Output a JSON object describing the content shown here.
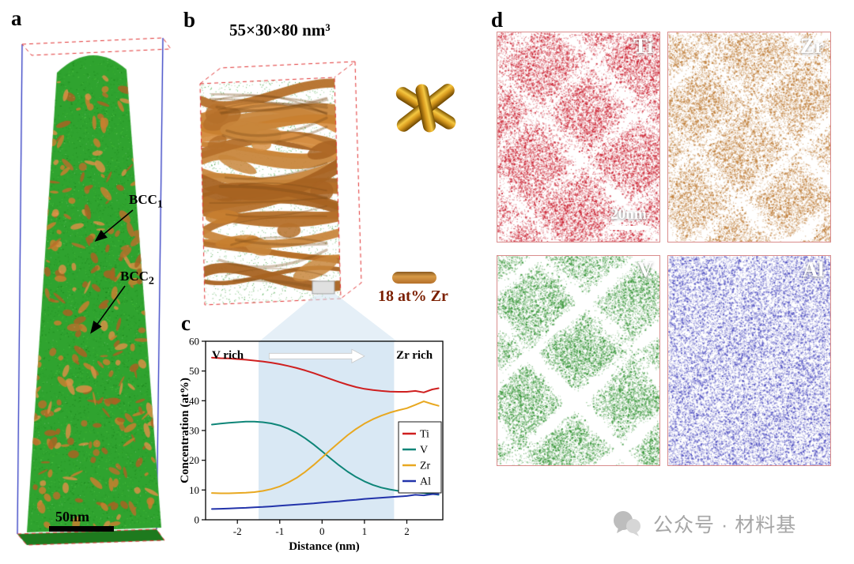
{
  "page": {
    "background": "#ffffff"
  },
  "panel_a": {
    "label": "a",
    "annotations": [
      {
        "text": "BCC",
        "sub": "1"
      },
      {
        "text": "BCC",
        "sub": "2"
      }
    ],
    "scale_bar_label": "50nm",
    "colors": {
      "matrix_green": "#2fa32f",
      "precipitate_orange": "#c07830",
      "wireframe_blue": "#2a35c0",
      "wireframe_red": "#e03030"
    }
  },
  "panel_b": {
    "label": "b",
    "volume_label": "55×30×80 nm³",
    "isosurface_caption": "18 at% Zr",
    "colors": {
      "matrix_green": "#2f9e2f",
      "isosurface_orange": "#c07830",
      "cylinder_gold": "#d89a1e"
    }
  },
  "panel_c": {
    "label": "c"
  },
  "chart_data": {
    "type": "line",
    "title": "",
    "xlabel": "Distance (nm)",
    "ylabel": "Concentration (at%)",
    "xlim": [
      -2.75,
      2.85
    ],
    "ylim": [
      0,
      60
    ],
    "xticks": [
      -2,
      -1,
      0,
      1,
      2
    ],
    "yticks": [
      0,
      10,
      20,
      30,
      40,
      50,
      60
    ],
    "shaded_region": {
      "x0": -1.5,
      "x1": 1.7,
      "color": "#d9e8f4"
    },
    "arrow": {
      "x0": -1.25,
      "x1": 1.0,
      "y": 55.0
    },
    "annotations": [
      {
        "text": "V rich",
        "x": -2.6,
        "y": 55.5
      },
      {
        "text": "Zr rich",
        "x": 1.75,
        "y": 55.5
      }
    ],
    "legend": {
      "position": "middle-right",
      "entries": [
        "Ti",
        "V",
        "Zr",
        "Al"
      ]
    },
    "x": [
      -2.6,
      -2.4,
      -2.2,
      -2.0,
      -1.8,
      -1.6,
      -1.4,
      -1.2,
      -1.0,
      -0.8,
      -0.6,
      -0.4,
      -0.2,
      0.0,
      0.2,
      0.4,
      0.6,
      0.8,
      1.0,
      1.2,
      1.4,
      1.6,
      1.8,
      2.0,
      2.2,
      2.4,
      2.6,
      2.75
    ],
    "series": [
      {
        "name": "Ti",
        "color": "#cf1f1f",
        "y": [
          54.5,
          54.3,
          54.2,
          54.0,
          53.8,
          53.5,
          53.2,
          52.8,
          52.3,
          51.7,
          51.0,
          50.2,
          49.3,
          48.3,
          47.3,
          46.3,
          45.4,
          44.6,
          44.0,
          43.6,
          43.3,
          43.1,
          43.0,
          43.0,
          43.3,
          42.8,
          43.8,
          44.2
        ]
      },
      {
        "name": "V",
        "color": "#0e8578",
        "y": [
          32.0,
          32.3,
          32.6,
          32.8,
          33.0,
          33.0,
          32.8,
          32.4,
          31.7,
          30.6,
          29.2,
          27.4,
          25.3,
          23.0,
          20.6,
          18.3,
          16.2,
          14.4,
          12.9,
          11.7,
          10.8,
          10.2,
          9.7,
          9.4,
          9.2,
          9.0,
          8.7,
          8.4
        ]
      },
      {
        "name": "Zr",
        "color": "#e8a820",
        "y": [
          9.0,
          8.9,
          8.9,
          9.0,
          9.1,
          9.3,
          9.7,
          10.3,
          11.2,
          12.5,
          14.1,
          16.1,
          18.4,
          20.9,
          23.5,
          26.0,
          28.4,
          30.5,
          32.3,
          33.8,
          35.0,
          36.0,
          36.8,
          37.5,
          38.6,
          39.8,
          38.9,
          38.3
        ]
      },
      {
        "name": "Al",
        "color": "#2233aa",
        "y": [
          3.6,
          3.7,
          3.8,
          3.9,
          4.0,
          4.2,
          4.3,
          4.5,
          4.7,
          4.9,
          5.1,
          5.3,
          5.5,
          5.8,
          6.0,
          6.2,
          6.5,
          6.7,
          7.0,
          7.2,
          7.4,
          7.6,
          7.8,
          8.0,
          8.4,
          8.2,
          8.6,
          8.6
        ]
      }
    ]
  },
  "panel_d": {
    "label": "d",
    "maps": [
      {
        "element": "Ti",
        "color": "#cb2030",
        "scale_bar": "20nm"
      },
      {
        "element": "Zr",
        "color": "#bf7c35"
      },
      {
        "element": "V",
        "color": "#2f9230"
      },
      {
        "element": "Al",
        "color": "#4b4bc0"
      }
    ]
  },
  "watermark": {
    "text": "公众号 · 材料基",
    "icon": "wechat-official-account-icon"
  }
}
